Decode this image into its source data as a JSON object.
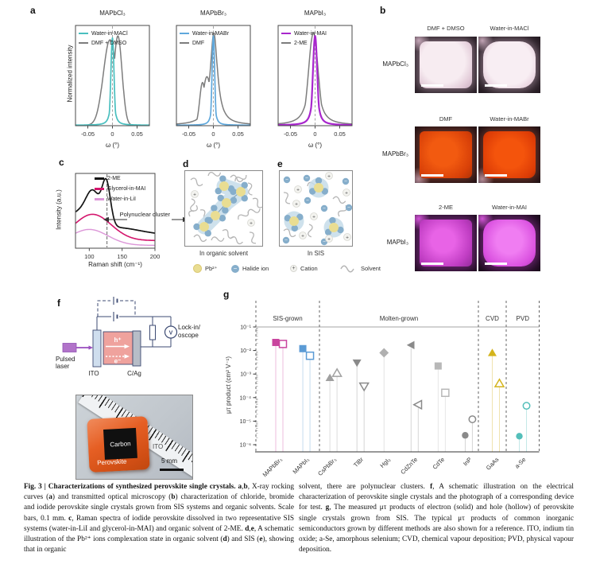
{
  "figure": {
    "caption_left": [
      {
        "b": 1,
        "t": "Fig. 3 | Characterizations of synthesized perovskite single crystals. "
      },
      {
        "b": 1,
        "t": "a"
      },
      {
        "t": ","
      },
      {
        "b": 1,
        "t": "b"
      },
      {
        "t": ", X-ray rocking curves ("
      },
      {
        "b": 1,
        "t": "a"
      },
      {
        "t": ") and transmitted optical microscopy ("
      },
      {
        "b": 1,
        "t": "b"
      },
      {
        "t": ") characterization of chloride, bromide and iodide perovskite single crystals grown from SIS systems and organic solvents. Scale bars, 0.1 mm. "
      },
      {
        "b": 1,
        "t": "c"
      },
      {
        "t": ", Raman spectra of iodide perovskite dissolved in two representative SIS systems (water-in-LiI and glycerol-in-MAI) and organic solvent of 2-ME. "
      },
      {
        "b": 1,
        "t": "d"
      },
      {
        "t": ","
      },
      {
        "b": 1,
        "t": "e"
      },
      {
        "t": ", A schematic illustration of the Pb²⁺ ions complexation state in organic solvent ("
      },
      {
        "b": 1,
        "t": "d"
      },
      {
        "t": ") and SIS ("
      },
      {
        "b": 1,
        "t": "e"
      },
      {
        "t": "), showing that in organic"
      }
    ],
    "caption_right": [
      {
        "t": "solvent, there are polynuclear clusters. "
      },
      {
        "b": 1,
        "t": "f"
      },
      {
        "t": ", A schematic illustration on the electrical characterization of perovskite single crystals and the photograph of a corresponding device for test. "
      },
      {
        "b": 1,
        "t": "g"
      },
      {
        "t": ", The measured μτ products of electron (solid) and hole (hollow) of perovskite single crystals grown from SIS. The typical μτ products of common inorganic semiconductors grown by different methods are also shown for a reference. ITO, indium tin oxide; a-Se, amorphous selenium; CVD, chemical vapour deposition; PVD, physical vapour deposition."
      }
    ]
  },
  "panel_a": {
    "label": "a"
  },
  "panel_b": {
    "label": "b",
    "rows": [
      {
        "row_label": "MAPbCl₃",
        "left_header": "DMF + DMSO",
        "right_header": "Water-in-MACl"
      },
      {
        "row_label": "MAPbBr₃",
        "left_header": "DMF",
        "right_header": "Water-in-MABr"
      },
      {
        "row_label": "MAPbI₃",
        "left_header": "2-ME",
        "right_header": "Water-in-MAI"
      }
    ]
  },
  "panel_c": {
    "label": "c"
  },
  "panel_d": {
    "label": "d",
    "caption": "In organic solvent"
  },
  "panel_e": {
    "label": "e",
    "caption": "In SIS"
  },
  "de_legend": [
    {
      "icon": "pb-circle",
      "label": "Pb²⁺"
    },
    {
      "icon": "halide-circle",
      "label": "Halide ion"
    },
    {
      "icon": "cation-circle",
      "label": "Cation"
    },
    {
      "icon": "solvent-squiggle",
      "label": "Solvent"
    }
  ],
  "panel_f": {
    "label": "f",
    "pulsed_laser": "Pulsed laser",
    "ito": "ITO",
    "cag": "C/Ag",
    "lockin": "Lock-in/\noscope",
    "voltmeter": "V",
    "h_plus": "h⁺",
    "e_minus": "e⁻",
    "photo": {
      "carbon": "Carbon",
      "perovskite": "Perovskite",
      "ito": "ITO",
      "scale": "5 mm"
    }
  },
  "panel_g": {
    "label": "g"
  },
  "chart_data": [
    {
      "type": "line",
      "panel": "a",
      "ylabel": "Normalized intensity",
      "charts": [
        {
          "title": "MAPbCl₃",
          "xlabel": "ω (°)",
          "xrange": [
            -0.075,
            0.075
          ],
          "xticks": [
            "-0.05",
            "0",
            "0.05"
          ],
          "series": [
            {
              "name": "Water-in-MACl",
              "color": "#49bfbf",
              "lw": 1.7,
              "combine": "max",
              "peaks": [
                {
                  "kind": "gauss",
                  "c": 0,
                  "w": 0.0045,
                  "h": 0.9
                },
                {
                  "kind": "lorentz",
                  "c": 0,
                  "w": 0.0035,
                  "h": 0.55
                }
              ]
            },
            {
              "name": "DMF + DMSO",
              "color": "#7d7d7d",
              "lw": 1.5,
              "combine": "max",
              "peaks": [
                {
                  "kind": "gauss",
                  "c": -0.005,
                  "w": 0.019,
                  "h": 0.88
                },
                {
                  "kind": "gauss",
                  "c": 0.011,
                  "w": 0.012,
                  "h": 0.92
                }
              ]
            }
          ]
        },
        {
          "title": "MAPbBr₃",
          "xlabel": "ω (°)",
          "xrange": [
            -0.075,
            0.075
          ],
          "xticks": [
            "-0.05",
            "0",
            "0.05"
          ],
          "series": [
            {
              "name": "Water-in-MABr",
              "color": "#5fa8dc",
              "lw": 1.7,
              "combine": "max",
              "peaks": [
                {
                  "kind": "gauss",
                  "c": 0,
                  "w": 0.0038,
                  "h": 0.92
                },
                {
                  "kind": "lorentz",
                  "c": 0,
                  "w": 0.003,
                  "h": 0.5
                }
              ]
            },
            {
              "name": "DMF",
              "color": "#7d7d7d",
              "lw": 1.5,
              "combine": "max",
              "peaks": [
                {
                  "kind": "lorentz",
                  "c": 0.001,
                  "w": 0.009,
                  "h": 0.95
                },
                {
                  "kind": "gauss",
                  "c": -0.013,
                  "w": 0.012,
                  "h": 0.5
                },
                {
                  "kind": "gauss",
                  "c": -0.022,
                  "w": 0.008,
                  "h": 0.44
                }
              ]
            }
          ]
        },
        {
          "title": "MAPbI₃",
          "xlabel": "ω (°)",
          "xrange": [
            -0.075,
            0.075
          ],
          "xticks": [
            "-0.05",
            "0",
            "0.05"
          ],
          "series": [
            {
              "name": "Water-in-MAI",
              "color": "#a826cd",
              "lw": 2.2,
              "combine": "max",
              "peaks": [
                {
                  "kind": "gauss",
                  "c": 0,
                  "w": 0.0062,
                  "h": 0.92
                },
                {
                  "kind": "lorentz",
                  "c": 0,
                  "w": 0.0045,
                  "h": 0.75
                }
              ]
            },
            {
              "name": "2-ME",
              "color": "#7d7d7d",
              "lw": 1.5,
              "combine": "max",
              "peaks": [
                {
                  "kind": "gauss",
                  "c": -0.0035,
                  "w": 0.0135,
                  "h": 0.95
                },
                {
                  "kind": "lorentz",
                  "c": -0.0035,
                  "w": 0.01,
                  "h": 0.8
                }
              ]
            }
          ]
        }
      ]
    },
    {
      "type": "line",
      "panel": "c",
      "xlabel": "Raman shift (cm⁻¹)",
      "ylabel": "Intensity (a.u.)",
      "xrange": [
        79,
        200
      ],
      "xticks": [
        "100",
        "150",
        "200"
      ],
      "dashed_x": 127,
      "annotation": "Polynuclear cluster",
      "series": [
        {
          "name": "2-ME",
          "color": "#141414",
          "lw": 1.7,
          "base": 0.16,
          "combine": "sum",
          "peaks": [
            {
              "kind": "gauss",
              "c": 82,
              "w": 32,
              "h": 0.26
            },
            {
              "kind": "gauss",
              "c": 106,
              "w": 15,
              "h": 0.36
            },
            {
              "kind": "gauss",
              "c": 126,
              "w": 9,
              "h": 0.52
            },
            {
              "kind": "gauss",
              "c": 142,
              "w": 50,
              "h": 0.09
            }
          ]
        },
        {
          "name": "Glycerol-in-MAI",
          "color": "#d4166d",
          "lw": 1.6,
          "base": 0.09,
          "combine": "sum",
          "peaks": [
            {
              "kind": "gauss",
              "c": 105,
              "w": 40,
              "h": 0.33
            }
          ]
        },
        {
          "name": "Water-in-LiI",
          "color": "#dc96d8",
          "lw": 1.4,
          "base": 0.03,
          "combine": "sum",
          "peaks": [
            {
              "kind": "gauss",
              "c": 100,
              "w": 40,
              "h": 0.2
            }
          ]
        }
      ]
    },
    {
      "type": "scatter-stem",
      "panel": "g",
      "ylabel": "μτ product (cm² V⁻¹)",
      "ylim": [
        1e-06,
        0.1
      ],
      "reference_line": 0.1,
      "yticks": [
        "10⁻¹",
        "10⁻²",
        "10⁻³",
        "10⁻⁴",
        "10⁻⁵",
        "10⁻⁶"
      ],
      "groups": [
        {
          "label": "SIS-grown"
        },
        {
          "label": "Molten-grown"
        },
        {
          "label": "CVD"
        },
        {
          "label": "PVD"
        }
      ],
      "group_spans": [
        [
          0,
          1
        ],
        [
          2,
          7
        ],
        [
          8,
          8
        ],
        [
          9,
          9
        ]
      ],
      "legend_note": "electron = solid, hole = hollow",
      "points": [
        {
          "material": "MAPbBr₃",
          "marker": "square",
          "color": "#c9449e",
          "electron": 0.022,
          "hole": 0.019
        },
        {
          "material": "MAPbI₃",
          "marker": "square",
          "color": "#5b9bd5",
          "electron": 0.012,
          "hole": 0.006
        },
        {
          "material": "CsPbBr₃",
          "marker": "triangle-up",
          "color": "#a0a0a0",
          "electron": 0.0007,
          "hole": 0.0011
        },
        {
          "material": "TlBr",
          "marker": "triangle-down",
          "color": "#8a8a8a",
          "electron": 0.003,
          "hole": 0.0003
        },
        {
          "material": "HgI₂",
          "marker": "diamond",
          "color": "#b0b0b0",
          "electron": 0.008,
          "hole": null
        },
        {
          "material": "CdZnTe",
          "marker": "triangle-left",
          "color": "#8a8a8a",
          "electron": 0.017,
          "hole": 5e-05
        },
        {
          "material": "CdTe",
          "marker": "square",
          "color": "#b8b8b8",
          "electron": 0.0022,
          "hole": 0.00016
        },
        {
          "material": "InP",
          "marker": "circle",
          "color": "#8a8a8a",
          "electron": 2.5e-06,
          "hole": 1.2e-05
        },
        {
          "material": "GaAs",
          "marker": "triangle-up",
          "color": "#d4b41c",
          "electron": 0.008,
          "hole": 0.0004
        },
        {
          "material": "a-Se",
          "marker": "circle",
          "color": "#54bfba",
          "electron": 2.3e-06,
          "hole": 4.5e-05
        }
      ]
    }
  ]
}
